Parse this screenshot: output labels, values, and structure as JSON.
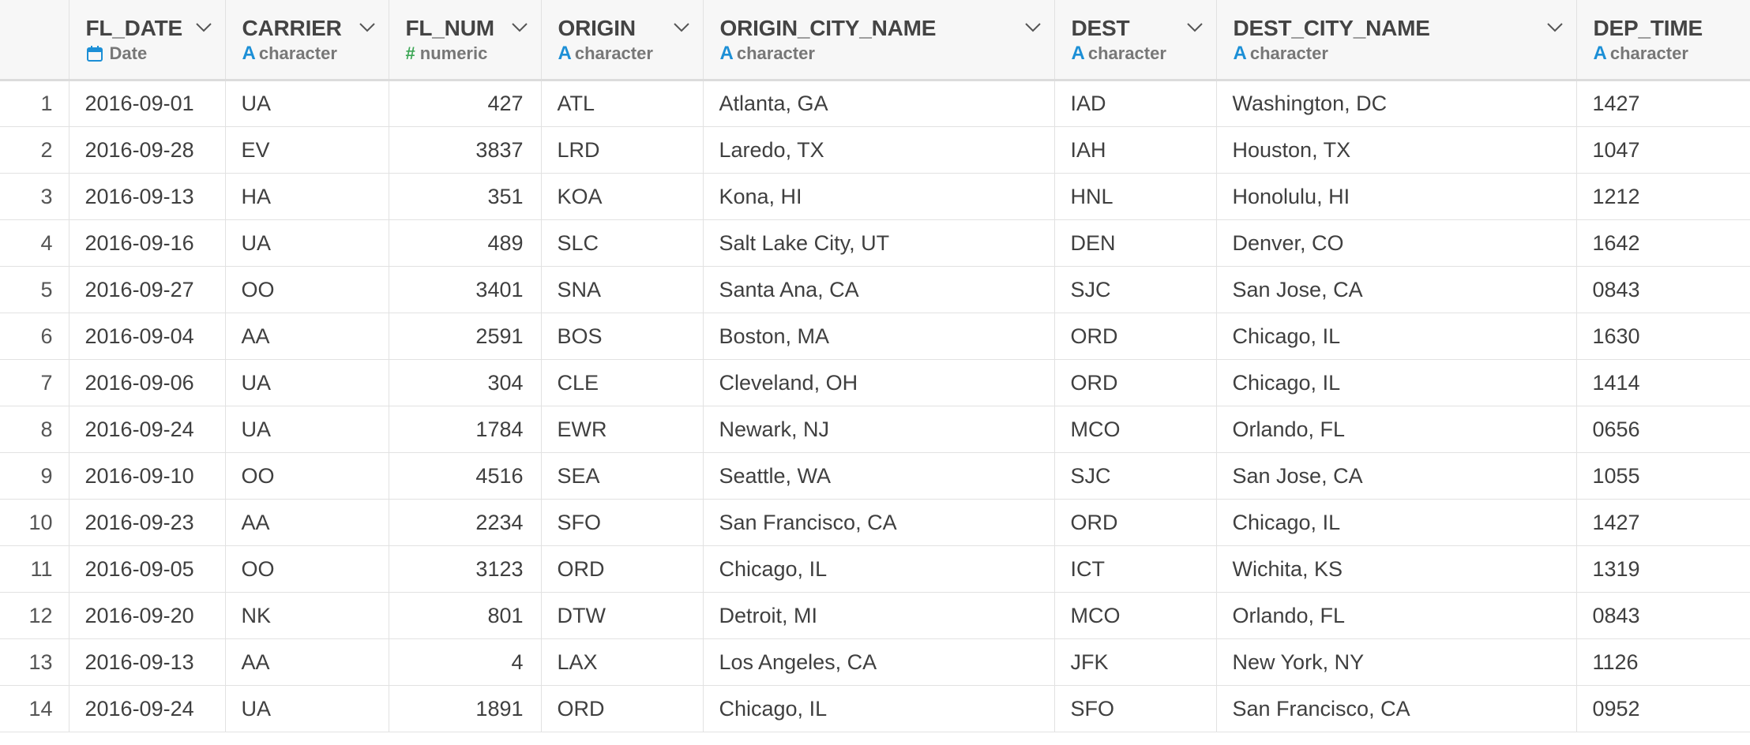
{
  "columns": [
    {
      "name": "FL_DATE",
      "type": "Date",
      "icon": "calendar-icon",
      "align": "left"
    },
    {
      "name": "CARRIER",
      "type": "character",
      "icon": "character-type-icon",
      "align": "left"
    },
    {
      "name": "FL_NUM",
      "type": "numeric",
      "icon": "numeric-type-icon",
      "align": "right"
    },
    {
      "name": "ORIGIN",
      "type": "character",
      "icon": "character-type-icon",
      "align": "left"
    },
    {
      "name": "ORIGIN_CITY_NAME",
      "type": "character",
      "icon": "character-type-icon",
      "align": "left"
    },
    {
      "name": "DEST",
      "type": "character",
      "icon": "character-type-icon",
      "align": "left"
    },
    {
      "name": "DEST_CITY_NAME",
      "type": "character",
      "icon": "character-type-icon",
      "align": "left"
    },
    {
      "name": "DEP_TIME",
      "type": "character",
      "icon": "character-type-icon",
      "align": "left"
    }
  ],
  "type_glyphs": {
    "character": "A",
    "numeric": "#"
  },
  "colors": {
    "character": "#1c8fd6",
    "numeric": "#3ca655",
    "date": "#1c8fd6"
  },
  "rows": [
    {
      "index": "1",
      "cells": [
        "2016-09-01",
        "UA",
        "427",
        "ATL",
        "Atlanta, GA",
        "IAD",
        "Washington, DC",
        "1427"
      ]
    },
    {
      "index": "2",
      "cells": [
        "2016-09-28",
        "EV",
        "3837",
        "LRD",
        "Laredo, TX",
        "IAH",
        "Houston, TX",
        "1047"
      ]
    },
    {
      "index": "3",
      "cells": [
        "2016-09-13",
        "HA",
        "351",
        "KOA",
        "Kona, HI",
        "HNL",
        "Honolulu, HI",
        "1212"
      ]
    },
    {
      "index": "4",
      "cells": [
        "2016-09-16",
        "UA",
        "489",
        "SLC",
        "Salt Lake City, UT",
        "DEN",
        "Denver, CO",
        "1642"
      ]
    },
    {
      "index": "5",
      "cells": [
        "2016-09-27",
        "OO",
        "3401",
        "SNA",
        "Santa Ana, CA",
        "SJC",
        "San Jose, CA",
        "0843"
      ]
    },
    {
      "index": "6",
      "cells": [
        "2016-09-04",
        "AA",
        "2591",
        "BOS",
        "Boston, MA",
        "ORD",
        "Chicago, IL",
        "1630"
      ]
    },
    {
      "index": "7",
      "cells": [
        "2016-09-06",
        "UA",
        "304",
        "CLE",
        "Cleveland, OH",
        "ORD",
        "Chicago, IL",
        "1414"
      ]
    },
    {
      "index": "8",
      "cells": [
        "2016-09-24",
        "UA",
        "1784",
        "EWR",
        "Newark, NJ",
        "MCO",
        "Orlando, FL",
        "0656"
      ]
    },
    {
      "index": "9",
      "cells": [
        "2016-09-10",
        "OO",
        "4516",
        "SEA",
        "Seattle, WA",
        "SJC",
        "San Jose, CA",
        "1055"
      ]
    },
    {
      "index": "10",
      "cells": [
        "2016-09-23",
        "AA",
        "2234",
        "SFO",
        "San Francisco, CA",
        "ORD",
        "Chicago, IL",
        "1427"
      ]
    },
    {
      "index": "11",
      "cells": [
        "2016-09-05",
        "OO",
        "3123",
        "ORD",
        "Chicago, IL",
        "ICT",
        "Wichita, KS",
        "1319"
      ]
    },
    {
      "index": "12",
      "cells": [
        "2016-09-20",
        "NK",
        "801",
        "DTW",
        "Detroit, MI",
        "MCO",
        "Orlando, FL",
        "0843"
      ]
    },
    {
      "index": "13",
      "cells": [
        "2016-09-13",
        "AA",
        "4",
        "LAX",
        "Los Angeles, CA",
        "JFK",
        "New York, NY",
        "1126"
      ]
    },
    {
      "index": "14",
      "cells": [
        "2016-09-24",
        "UA",
        "1891",
        "ORD",
        "Chicago, IL",
        "SFO",
        "San Francisco, CA",
        "0952"
      ]
    }
  ]
}
